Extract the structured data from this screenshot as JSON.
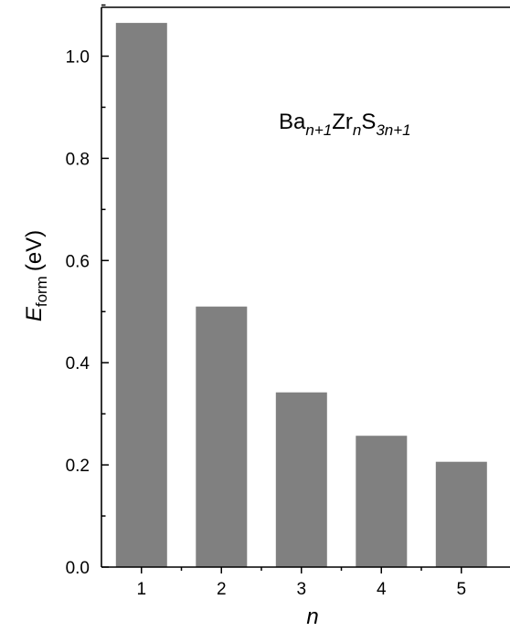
{
  "chart_data": {
    "type": "bar",
    "categories": [
      "1",
      "2",
      "3",
      "4",
      "5"
    ],
    "values": [
      1.065,
      0.51,
      0.342,
      0.257,
      0.206
    ],
    "ylim": [
      0,
      1.1
    ],
    "yticks": [
      "0.0",
      "0.2",
      "0.4",
      "0.6",
      "0.8",
      "1.0"
    ],
    "xlabel": "n",
    "ylabel": {
      "main": "E",
      "sub": "form",
      "unit": "(eV)"
    },
    "annotation": {
      "p1": "Ba",
      "s1": "n+1",
      "p2": "Zr",
      "s2": "n",
      "p3": "S",
      "s3": "3n+1"
    },
    "bar_color": "#808080",
    "grid": false,
    "legend": "none"
  }
}
